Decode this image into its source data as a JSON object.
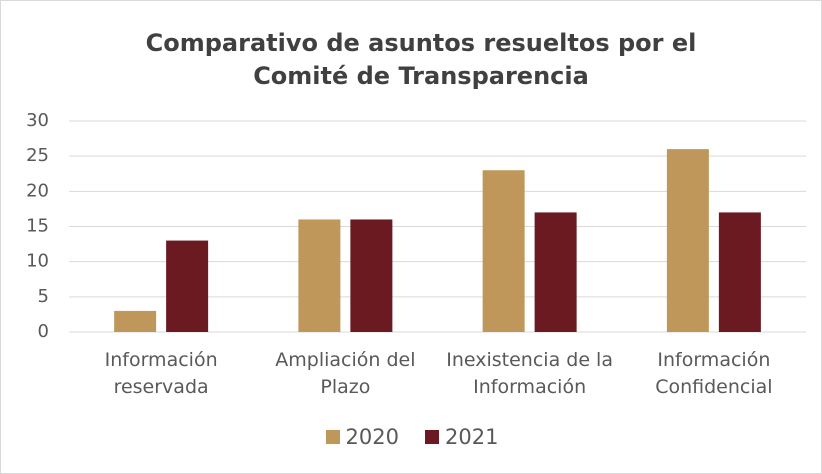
{
  "chart_data": {
    "type": "bar",
    "title": "Comparativo de asuntos resueltos por el Comité de Transparencia",
    "categories": [
      "Información reservada",
      "Ampliación del Plazo",
      "Inexistencia de la Información",
      "Información Confidencial"
    ],
    "series": [
      {
        "name": "2020",
        "color": "#c0975a",
        "values": [
          3,
          16,
          23,
          26
        ]
      },
      {
        "name": "2021",
        "color": "#6b1a22",
        "values": [
          13,
          16,
          17,
          17
        ]
      }
    ],
    "ylim": [
      0,
      30
    ],
    "yticks": [
      0,
      5,
      10,
      15,
      20,
      25,
      30
    ],
    "grid": true,
    "legend": "bottom"
  }
}
